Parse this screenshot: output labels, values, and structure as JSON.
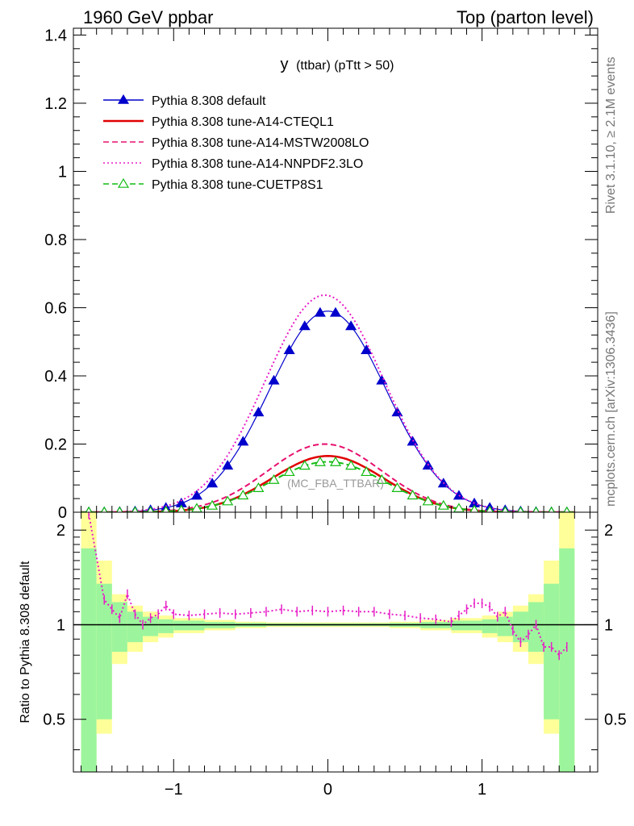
{
  "header": {
    "left": "1960 GeV ppbar",
    "right": "Top (parton level)"
  },
  "side": {
    "rivet": "Rivet 3.1.10, ≥ 2.1M events",
    "mcplots": "mcplots.cern.ch [arXiv:1306.3436]"
  },
  "chart_data": [
    {
      "type": "line",
      "title": "y (ttbar) (pTtt > 50)",
      "title_main": "y",
      "title_sub": "(ttbar)  (pTtt > 50)",
      "watermark": "(MC_FBA_TTBAR)",
      "xlim": [
        -1.65,
        1.75
      ],
      "ylim": [
        0,
        1.42
      ],
      "yticks": [
        0,
        0.2,
        0.4,
        0.6,
        0.8,
        1,
        1.2,
        1.4
      ],
      "ytick_labels": [
        "0",
        "0.2",
        "0.4",
        "0.6",
        "0.8",
        "1",
        "1.2",
        "1.4"
      ],
      "legend_position": "top-left",
      "series": [
        {
          "name": "Pythia 8.308 default",
          "color": "#0000cc",
          "style": "solid",
          "marker": "filled-triangle",
          "norm": 0.59,
          "sigma": 0.38
        },
        {
          "name": "Pythia 8.308 tune-A14-CTEQL1",
          "color": "#e00000",
          "style": "solid",
          "marker": "none",
          "norm": 0.165,
          "sigma": 0.36
        },
        {
          "name": "Pythia 8.308 tune-A14-MSTW2008LO",
          "color": "#e8106e",
          "style": "dashed",
          "marker": "none",
          "norm": 0.2,
          "sigma": 0.37
        },
        {
          "name": "Pythia 8.308 tune-A14-NNPDF2.3LO",
          "color": "#e81ec8",
          "style": "dotted",
          "marker": "none",
          "norm": 0.637,
          "sigma": 0.385
        },
        {
          "name": "Pythia 8.308 tune-CUETP8S1",
          "color": "#11bb11",
          "style": "dashed",
          "marker": "open-triangle",
          "norm": 0.148,
          "sigma": 0.37
        }
      ]
    },
    {
      "type": "line",
      "ylabel": "Ratio to Pythia 8.308 default",
      "xlim": [
        -1.65,
        1.75
      ],
      "ylim": [
        0.34,
        2.28
      ],
      "yscale": "log",
      "xticks": [
        -1,
        0,
        1
      ],
      "xtick_labels": [
        "−1",
        "0",
        "1"
      ],
      "yticks": [
        0.5,
        1,
        2
      ],
      "ytick_labels": [
        "0.5",
        "1",
        "2"
      ],
      "band_bins": [
        {
          "lo": -1.6,
          "hi": -1.5,
          "inner": [
            0.3,
            1.75
          ],
          "outer": [
            0.3,
            2.3
          ]
        },
        {
          "lo": -1.5,
          "hi": -1.4,
          "inner": [
            0.5,
            1.35
          ],
          "outer": [
            0.45,
            1.6
          ]
        },
        {
          "lo": -1.4,
          "hi": -1.3,
          "inner": [
            0.82,
            1.18
          ],
          "outer": [
            0.75,
            1.25
          ]
        },
        {
          "lo": -1.3,
          "hi": -1.2,
          "inner": [
            0.88,
            1.1
          ],
          "outer": [
            0.82,
            1.15
          ]
        },
        {
          "lo": -1.2,
          "hi": -1.1,
          "inner": [
            0.92,
            1.06
          ],
          "outer": [
            0.88,
            1.1
          ]
        },
        {
          "lo": -1.1,
          "hi": -1.0,
          "inner": [
            0.94,
            1.04
          ],
          "outer": [
            0.91,
            1.07
          ]
        },
        {
          "lo": -1.0,
          "hi": -0.8,
          "inner": [
            0.96,
            1.03
          ],
          "outer": [
            0.94,
            1.05
          ]
        },
        {
          "lo": -0.8,
          "hi": -0.6,
          "inner": [
            0.975,
            1.02
          ],
          "outer": [
            0.96,
            1.035
          ]
        },
        {
          "lo": -0.6,
          "hi": -0.4,
          "inner": [
            0.985,
            1.013
          ],
          "outer": [
            0.975,
            1.022
          ]
        },
        {
          "lo": -0.4,
          "hi": 0.4,
          "inner": [
            0.99,
            1.01
          ],
          "outer": [
            0.983,
            1.017
          ]
        },
        {
          "lo": 0.4,
          "hi": 0.6,
          "inner": [
            0.985,
            1.013
          ],
          "outer": [
            0.975,
            1.022
          ]
        },
        {
          "lo": 0.6,
          "hi": 0.8,
          "inner": [
            0.975,
            1.02
          ],
          "outer": [
            0.96,
            1.035
          ]
        },
        {
          "lo": 0.8,
          "hi": 1.0,
          "inner": [
            0.96,
            1.03
          ],
          "outer": [
            0.94,
            1.05
          ]
        },
        {
          "lo": 1.0,
          "hi": 1.1,
          "inner": [
            0.94,
            1.04
          ],
          "outer": [
            0.91,
            1.07
          ]
        },
        {
          "lo": 1.1,
          "hi": 1.2,
          "inner": [
            0.92,
            1.06
          ],
          "outer": [
            0.88,
            1.1
          ]
        },
        {
          "lo": 1.2,
          "hi": 1.3,
          "inner": [
            0.88,
            1.1
          ],
          "outer": [
            0.82,
            1.15
          ]
        },
        {
          "lo": 1.3,
          "hi": 1.4,
          "inner": [
            0.82,
            1.18
          ],
          "outer": [
            0.75,
            1.25
          ]
        },
        {
          "lo": 1.4,
          "hi": 1.5,
          "inner": [
            0.5,
            1.35
          ],
          "outer": [
            0.45,
            1.6
          ]
        },
        {
          "lo": 1.5,
          "hi": 1.6,
          "inner": [
            0.3,
            1.75
          ],
          "outer": [
            0.3,
            2.3
          ]
        }
      ],
      "band_colors": {
        "inner": "#9cf59c",
        "outer": "#ffff99"
      },
      "reference": {
        "value": 1,
        "color": "#000000"
      },
      "ratio_series": {
        "name": "Pythia 8.308 tune-A14-NNPDF2.3LO",
        "color": "#e81ec8",
        "x": [
          -1.55,
          -1.45,
          -1.4,
          -1.35,
          -1.3,
          -1.25,
          -1.2,
          -1.15,
          -1.1,
          -1.05,
          -1.0,
          -0.9,
          -0.8,
          -0.7,
          -0.6,
          -0.5,
          -0.4,
          -0.3,
          -0.2,
          -0.1,
          0.0,
          0.1,
          0.2,
          0.3,
          0.4,
          0.5,
          0.6,
          0.7,
          0.8,
          0.85,
          0.9,
          0.95,
          1.0,
          1.05,
          1.1,
          1.15,
          1.2,
          1.25,
          1.3,
          1.35,
          1.4,
          1.45,
          1.5,
          1.55
        ],
        "y": [
          2.25,
          1.2,
          1.12,
          1.05,
          1.25,
          1.08,
          1.0,
          1.05,
          1.08,
          1.15,
          1.08,
          1.07,
          1.08,
          1.09,
          1.08,
          1.09,
          1.1,
          1.12,
          1.1,
          1.11,
          1.1,
          1.11,
          1.1,
          1.1,
          1.08,
          1.07,
          1.05,
          1.04,
          1.02,
          1.07,
          1.12,
          1.17,
          1.17,
          1.14,
          1.06,
          1.1,
          0.96,
          0.88,
          0.93,
          1.0,
          0.85,
          0.85,
          0.8,
          0.85
        ]
      }
    }
  ]
}
